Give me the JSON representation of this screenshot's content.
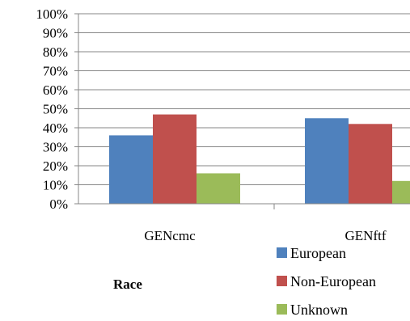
{
  "chart_data": {
    "type": "bar",
    "title": "",
    "xlabel": "Race",
    "ylabel": "",
    "ylim": [
      0,
      100
    ],
    "y_ticks": [
      "0%",
      "10%",
      "20%",
      "30%",
      "40%",
      "50%",
      "60%",
      "70%",
      "80%",
      "90%",
      "100%"
    ],
    "categories": [
      "GENcmc",
      "GENftf"
    ],
    "series": [
      {
        "name": "European",
        "values": [
          36,
          45
        ],
        "color": "#4f81bd"
      },
      {
        "name": "Non-European",
        "values": [
          47,
          42
        ],
        "color": "#c0504d"
      },
      {
        "name": "Unknown",
        "values": [
          16,
          12
        ],
        "color": "#9bbb59"
      }
    ],
    "grid": true,
    "legend": "bottom-right"
  }
}
